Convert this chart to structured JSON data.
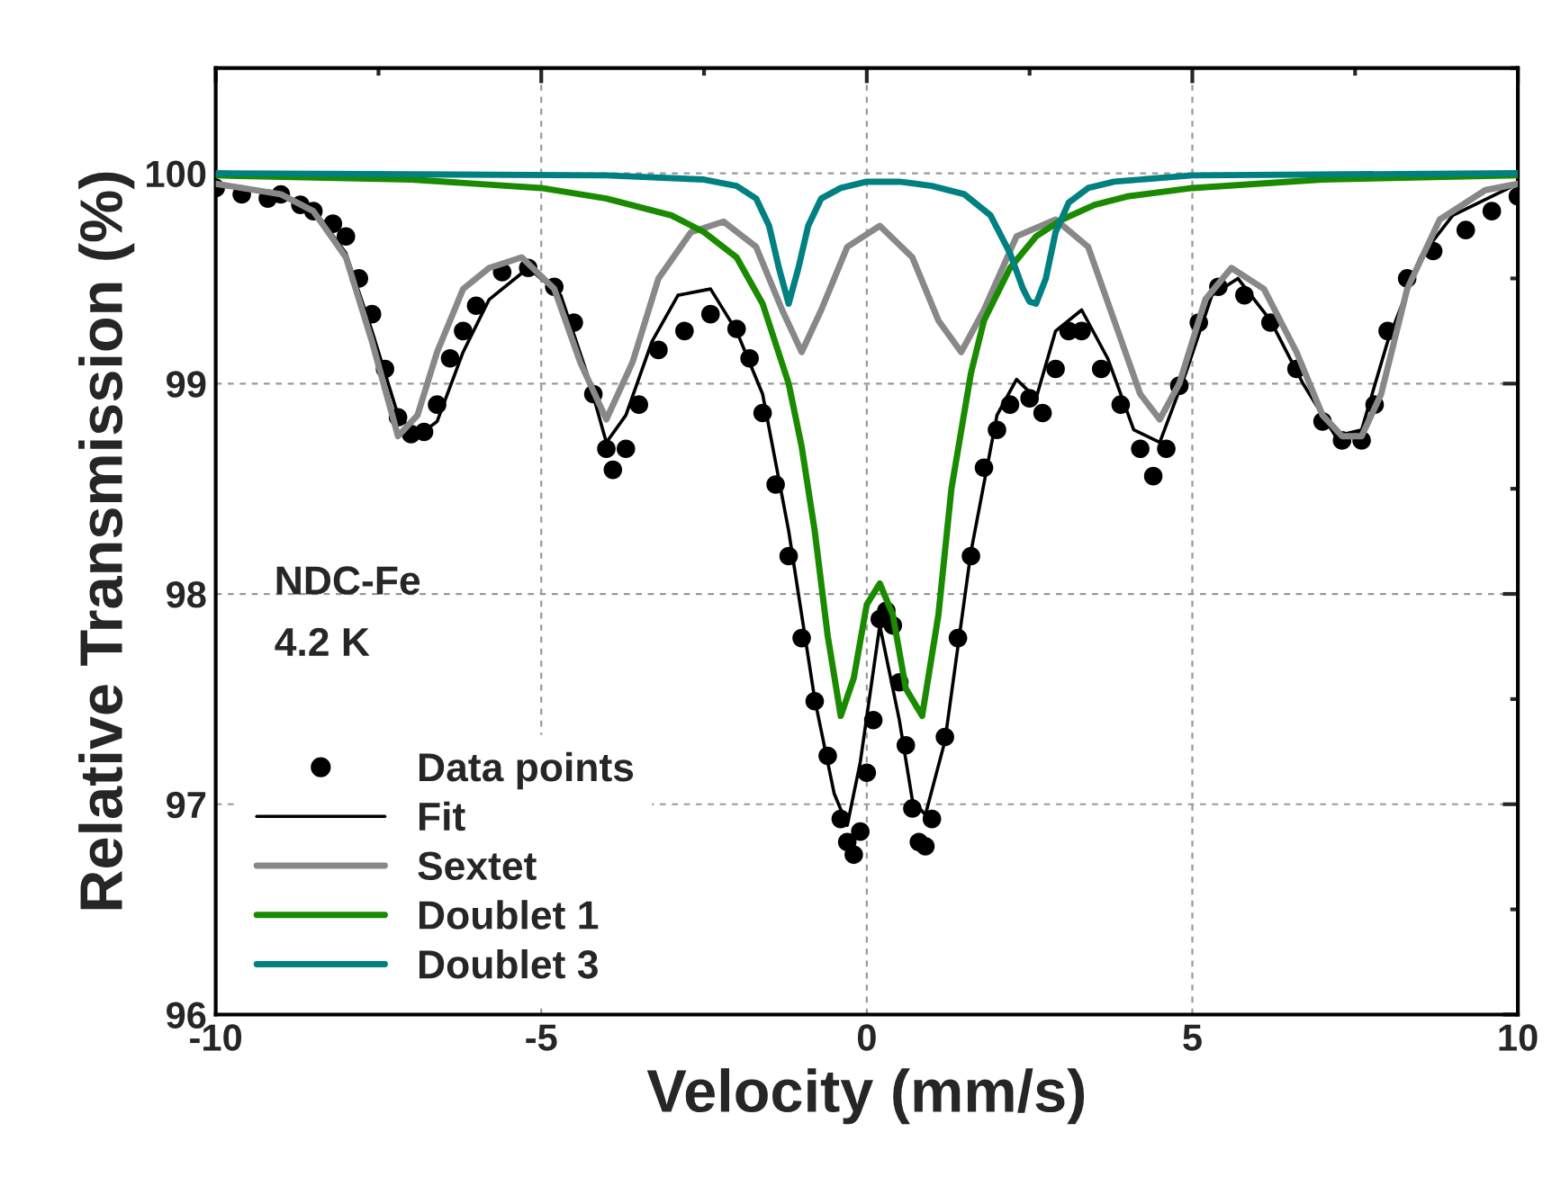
{
  "chart_data": {
    "type": "line",
    "xlabel": "Velocity (mm/s)",
    "ylabel": "Relative Transmission (%)",
    "xlim": [
      -10,
      10
    ],
    "ylim": [
      96,
      100.5
    ],
    "xticks": [
      -10,
      -5,
      0,
      5,
      10
    ],
    "yticks": [
      96,
      97,
      98,
      99,
      100
    ],
    "grid": true,
    "legend": "bottom left",
    "annotations": [
      "NDC-Fe",
      "4.2 K"
    ],
    "series": [
      {
        "name": "Data points",
        "type": "scatter",
        "marker": "circle",
        "color": "#000000",
        "x": [
          -10,
          -9.6,
          -9.2,
          -9,
          -8.7,
          -8.5,
          -8.2,
          -8,
          -7.8,
          -7.6,
          -7.4,
          -7.2,
          -7,
          -6.8,
          -6.6,
          -6.4,
          -6.2,
          -6,
          -5.6,
          -5.2,
          -4.8,
          -4.5,
          -4.2,
          -4,
          -3.9,
          -3.7,
          -3.5,
          -3.2,
          -2.8,
          -2.4,
          -2,
          -1.8,
          -1.6,
          -1.4,
          -1.2,
          -1,
          -0.8,
          -0.6,
          -0.4,
          -0.3,
          -0.2,
          -0.1,
          0,
          0.1,
          0.2,
          0.3,
          0.4,
          0.5,
          0.6,
          0.7,
          0.8,
          0.9,
          1,
          1.2,
          1.4,
          1.6,
          1.8,
          2,
          2.2,
          2.5,
          2.7,
          2.9,
          3.1,
          3.3,
          3.6,
          3.9,
          4.2,
          4.4,
          4.6,
          4.8,
          5.1,
          5.4,
          5.8,
          6.2,
          6.6,
          7,
          7.3,
          7.6,
          7.8,
          8,
          8.3,
          8.7,
          9.2,
          9.6,
          10
        ],
        "values": [
          99.93,
          99.9,
          99.88,
          99.9,
          99.85,
          99.82,
          99.76,
          99.7,
          99.5,
          99.33,
          99.07,
          98.84,
          98.76,
          98.77,
          98.9,
          99.12,
          99.25,
          99.37,
          99.53,
          99.55,
          99.46,
          99.29,
          98.95,
          98.69,
          98.59,
          98.69,
          98.9,
          99.16,
          99.25,
          99.33,
          99.26,
          99.12,
          98.86,
          98.52,
          98.18,
          97.79,
          97.49,
          97.23,
          96.93,
          96.82,
          96.76,
          96.87,
          97.15,
          97.4,
          97.88,
          97.92,
          97.85,
          97.58,
          97.28,
          96.98,
          96.82,
          96.8,
          96.93,
          97.32,
          97.79,
          98.18,
          98.6,
          98.78,
          98.9,
          98.93,
          98.86,
          99.07,
          99.25,
          99.25,
          99.07,
          98.9,
          98.69,
          98.56,
          98.69,
          98.99,
          99.29,
          99.46,
          99.42,
          99.29,
          99.07,
          98.82,
          98.73,
          98.73,
          98.9,
          99.25,
          99.5,
          99.63,
          99.73,
          99.82,
          99.89
        ]
      },
      {
        "name": "Fit",
        "color": "#000000",
        "x": [
          -10,
          -9,
          -8.5,
          -8,
          -7.6,
          -7.2,
          -6.9,
          -6.6,
          -6.2,
          -5.8,
          -5.2,
          -4.7,
          -4.3,
          -4,
          -3.7,
          -3.3,
          -2.9,
          -2.4,
          -2,
          -1.6,
          -1.2,
          -0.8,
          -0.5,
          -0.3,
          -0.1,
          0.2,
          0.5,
          0.7,
          0.9,
          1.2,
          1.6,
          2,
          2.3,
          2.6,
          2.9,
          3.3,
          3.7,
          4.1,
          4.5,
          4.9,
          5.3,
          5.7,
          6.2,
          6.7,
          7.2,
          7.6,
          8,
          8.5,
          9,
          10
        ],
        "values": [
          99.95,
          99.9,
          99.83,
          99.62,
          99.25,
          98.85,
          98.75,
          98.82,
          99.15,
          99.4,
          99.55,
          99.42,
          99.05,
          98.72,
          98.85,
          99.2,
          99.42,
          99.45,
          99.25,
          98.95,
          98.3,
          97.5,
          97.05,
          96.9,
          97.2,
          97.85,
          97.4,
          97.02,
          96.95,
          97.3,
          98.2,
          98.85,
          99.02,
          98.93,
          99.25,
          99.35,
          99.12,
          98.78,
          98.72,
          99.05,
          99.42,
          99.5,
          99.3,
          99,
          98.75,
          98.78,
          99.2,
          99.6,
          99.8,
          99.95
        ]
      },
      {
        "name": "Sextet",
        "color": "#888888",
        "x": [
          -10,
          -9,
          -8.5,
          -8,
          -7.6,
          -7.2,
          -6.9,
          -6.6,
          -6.2,
          -5.8,
          -5.3,
          -4.8,
          -4.4,
          -4,
          -3.6,
          -3.2,
          -2.7,
          -2.2,
          -1.7,
          -1.3,
          -1,
          -0.7,
          -0.3,
          0.2,
          0.7,
          1.1,
          1.45,
          1.8,
          2.3,
          2.9,
          3.4,
          3.8,
          4.2,
          4.5,
          4.8,
          5.2,
          5.6,
          6.1,
          6.6,
          7,
          7.3,
          7.6,
          7.9,
          8.3,
          8.8,
          9.5,
          10
        ],
        "values": [
          99.95,
          99.9,
          99.82,
          99.6,
          99.2,
          98.75,
          98.85,
          99.15,
          99.45,
          99.55,
          99.6,
          99.45,
          99.1,
          98.83,
          99.1,
          99.5,
          99.72,
          99.77,
          99.65,
          99.35,
          99.15,
          99.35,
          99.65,
          99.75,
          99.6,
          99.3,
          99.15,
          99.35,
          99.7,
          99.78,
          99.65,
          99.3,
          98.95,
          98.83,
          99,
          99.4,
          99.55,
          99.45,
          99.15,
          98.85,
          98.75,
          98.75,
          98.95,
          99.45,
          99.78,
          99.92,
          99.95
        ]
      },
      {
        "name": "Doublet 1",
        "color": "#1a8a00",
        "x": [
          -10,
          -7,
          -5,
          -4,
          -3,
          -2.5,
          -2,
          -1.6,
          -1.2,
          -1,
          -0.8,
          -0.6,
          -0.4,
          -0.2,
          0,
          0.2,
          0.4,
          0.6,
          0.85,
          1.1,
          1.3,
          1.6,
          1.8,
          2.2,
          2.6,
          3,
          3.5,
          4,
          5,
          7,
          10
        ],
        "values": [
          99.99,
          99.97,
          99.93,
          99.88,
          99.8,
          99.72,
          99.6,
          99.38,
          99.0,
          98.7,
          98.3,
          97.8,
          97.42,
          97.6,
          97.95,
          98.05,
          97.9,
          97.55,
          97.42,
          97.9,
          98.5,
          99.05,
          99.3,
          99.55,
          99.7,
          99.78,
          99.85,
          99.89,
          99.93,
          99.97,
          99.99
        ]
      },
      {
        "name": "Doublet 3",
        "color": "#008080",
        "x": [
          -10,
          -4,
          -2.5,
          -2,
          -1.7,
          -1.5,
          -1.35,
          -1.2,
          -1.05,
          -0.9,
          -0.7,
          -0.4,
          0,
          0.5,
          1,
          1.5,
          1.9,
          2.2,
          2.4,
          2.5,
          2.6,
          2.75,
          2.9,
          3.1,
          3.4,
          3.8,
          5,
          10
        ],
        "values": [
          100,
          99.99,
          99.97,
          99.94,
          99.88,
          99.75,
          99.55,
          99.38,
          99.55,
          99.75,
          99.88,
          99.93,
          99.96,
          99.96,
          99.94,
          99.9,
          99.8,
          99.62,
          99.45,
          99.39,
          99.38,
          99.5,
          99.72,
          99.86,
          99.93,
          99.96,
          99.99,
          100
        ]
      }
    ]
  }
}
